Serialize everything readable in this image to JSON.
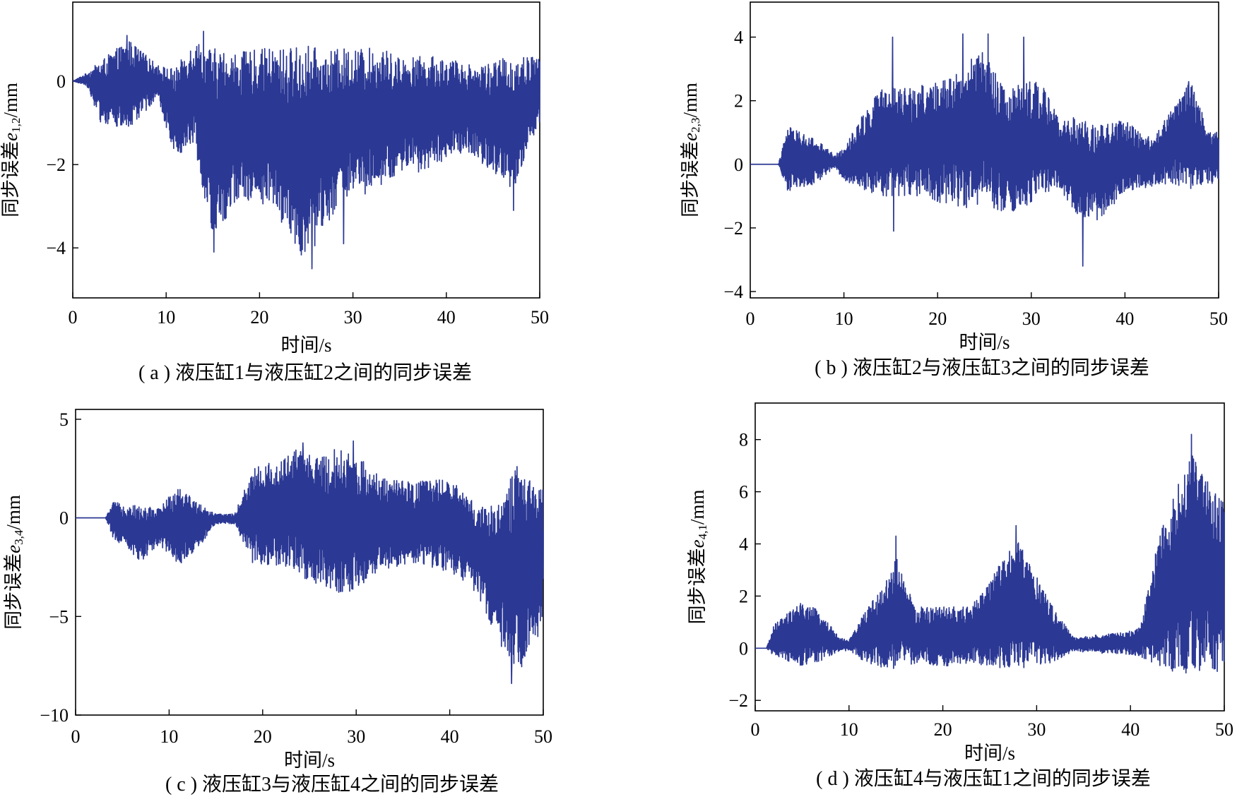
{
  "chart_data": [
    {
      "type": "line",
      "panel": "a",
      "caption": "( a ) 液压缸1与液压缸2之间的同步误差",
      "xlabel": "时间/s",
      "ylabel": {
        "prefix": "同步误差",
        "var": "e",
        "sub": "1,2",
        "unit": "/mm"
      },
      "xlim": [
        0,
        50
      ],
      "ylim": [
        -5.2,
        1.9
      ],
      "xticks": [
        0,
        10,
        20,
        30,
        40,
        50
      ],
      "yticks": [
        -4,
        -2,
        0
      ],
      "ytick_labels": [
        "−4",
        "−2",
        "0"
      ],
      "color": "#2B3894",
      "series": [
        {
          "t": [
            0,
            1.5,
            3,
            6,
            9,
            11,
            13,
            15,
            18,
            21,
            23,
            25,
            27,
            29,
            31,
            33,
            35,
            37,
            39,
            41,
            43,
            45,
            47,
            49,
            50
          ],
          "max": [
            0,
            0.2,
            0.5,
            1.0,
            0.4,
            0.3,
            1.0,
            0.8,
            0.7,
            0.8,
            0.8,
            0.9,
            0.7,
            0.8,
            0.8,
            0.8,
            0.6,
            0.6,
            0.6,
            0.5,
            0.4,
            0.5,
            0.6,
            0.6,
            0.6
          ],
          "min": [
            0,
            -0.1,
            -1.0,
            -1.2,
            -0.4,
            -1.8,
            -1.5,
            -3.8,
            -2.8,
            -3.0,
            -3.6,
            -4.4,
            -3.5,
            -2.8,
            -2.8,
            -2.6,
            -2.2,
            -2.2,
            -2.0,
            -1.7,
            -1.8,
            -2.2,
            -2.8,
            -1.5,
            -1.0
          ],
          "peaks": [
            [
              14.0,
              1.2
            ],
            [
              15.1,
              -4.1
            ],
            [
              25.6,
              -4.5
            ],
            [
              29.0,
              -3.9
            ],
            [
              47.2,
              -3.1
            ],
            [
              5.8,
              1.1
            ]
          ]
        }
      ]
    },
    {
      "type": "line",
      "panel": "b",
      "caption": "( b ) 液压缸2与液压缸3之间的同步误差",
      "xlabel": "时间/s",
      "ylabel": {
        "prefix": "同步误差",
        "var": "e",
        "sub": "2,3",
        "unit": "/mm"
      },
      "xlim": [
        0,
        50
      ],
      "ylim": [
        -4.2,
        5.1
      ],
      "xticks": [
        0,
        10,
        20,
        30,
        40,
        50
      ],
      "yticks": [
        -4,
        -2,
        0,
        2,
        4
      ],
      "ytick_labels": [
        "−4",
        "−2",
        "0",
        "2",
        "4"
      ],
      "color": "#2B3894",
      "series": [
        {
          "t": [
            0,
            3,
            4,
            7,
            9,
            10,
            12,
            14,
            17,
            20,
            23,
            25,
            27,
            29,
            31,
            33,
            35,
            37,
            40,
            43,
            45,
            47,
            49,
            50
          ],
          "max": [
            0,
            0,
            1.2,
            0.8,
            0.3,
            0.5,
            1.6,
            2.4,
            2.4,
            2.6,
            3.2,
            3.6,
            2.4,
            2.6,
            2.6,
            1.4,
            1.5,
            1.2,
            1.4,
            0.8,
            1.8,
            2.6,
            1.2,
            1.0
          ],
          "min": [
            0,
            0,
            -0.9,
            -0.6,
            -0.1,
            -0.5,
            -0.8,
            -1.0,
            -1.0,
            -1.2,
            -1.4,
            -1.2,
            -1.6,
            -1.4,
            -1.0,
            -0.8,
            -1.6,
            -1.8,
            -0.9,
            -0.7,
            -0.6,
            -0.8,
            -0.6,
            -0.6
          ],
          "peaks": [
            [
              15.2,
              4.0
            ],
            [
              15.3,
              -2.1
            ],
            [
              22.7,
              4.1
            ],
            [
              25.4,
              4.1
            ],
            [
              29.2,
              4.0
            ],
            [
              35.5,
              -3.2
            ],
            [
              46.8,
              2.6
            ]
          ]
        }
      ]
    },
    {
      "type": "line",
      "panel": "c",
      "caption": "( c ) 液压缸3与液压缸4之间的同步误差",
      "xlabel": "时间/s",
      "ylabel": {
        "prefix": "同步误差",
        "var": "e",
        "sub": "3,4",
        "unit": "/mm"
      },
      "xlim": [
        0,
        50
      ],
      "ylim": [
        -10,
        5.5
      ],
      "xticks": [
        0,
        10,
        20,
        30,
        40,
        50
      ],
      "yticks": [
        -10,
        -5,
        0,
        5
      ],
      "ytick_labels": [
        "−10",
        "−5",
        "0",
        "5"
      ],
      "color": "#2B3894",
      "series": [
        {
          "t": [
            0,
            3.2,
            4,
            7,
            9,
            11,
            13,
            15,
            17,
            19,
            22,
            24,
            26,
            28,
            30,
            33,
            36,
            39,
            41,
            43,
            45,
            47,
            49,
            50
          ],
          "max": [
            0,
            0,
            0.8,
            0.6,
            0.5,
            1.8,
            0.8,
            0.2,
            0.2,
            2.6,
            3.0,
            3.6,
            3.0,
            3.6,
            3.2,
            2.0,
            1.8,
            2.0,
            1.6,
            0.6,
            0.8,
            2.4,
            2.0,
            1.4
          ],
          "min": [
            0,
            0,
            -1.0,
            -2.2,
            -1.4,
            -2.4,
            -1.6,
            -0.3,
            -0.3,
            -2.4,
            -2.4,
            -3.0,
            -3.4,
            -4.0,
            -3.6,
            -2.6,
            -2.4,
            -2.6,
            -3.0,
            -4.0,
            -6.0,
            -8.0,
            -7.0,
            -5.0
          ],
          "peaks": [
            [
              24.3,
              3.8
            ],
            [
              29.7,
              3.9
            ],
            [
              46.6,
              -8.4
            ],
            [
              47.2,
              2.6
            ]
          ]
        }
      ]
    },
    {
      "type": "line",
      "panel": "d",
      "caption": "( d ) 液压缸4与液压缸1之间的同步误差",
      "xlabel": "时间/s",
      "ylabel": {
        "prefix": "同步误差",
        "var": "e",
        "sub": "4,1",
        "unit": "/mm"
      },
      "xlim": [
        0,
        50
      ],
      "ylim": [
        -2.4,
        9.4
      ],
      "xticks": [
        0,
        10,
        20,
        30,
        40,
        50
      ],
      "yticks": [
        -2,
        0,
        2,
        4,
        6,
        8
      ],
      "ytick_labels": [
        "−2",
        "0",
        "2",
        "4",
        "6",
        "8"
      ],
      "color": "#2B3894",
      "series": [
        {
          "t": [
            0,
            1.2,
            2,
            5,
            7,
            9,
            10,
            12,
            14,
            15,
            17,
            20,
            23,
            26,
            28,
            30,
            32,
            34,
            36,
            39,
            41,
            43,
            45,
            46.5,
            48,
            50
          ],
          "max": [
            0,
            0,
            0.9,
            1.8,
            1.4,
            0.4,
            0.3,
            1.6,
            2.6,
            3.6,
            1.6,
            1.6,
            1.6,
            3.2,
            4.2,
            2.8,
            1.4,
            0.4,
            0.5,
            0.6,
            0.8,
            4.2,
            6.4,
            7.6,
            6.6,
            5.6
          ],
          "min": [
            0,
            0,
            -0.3,
            -0.7,
            -0.5,
            -0.1,
            -0.1,
            -0.6,
            -0.8,
            -0.9,
            -0.6,
            -0.7,
            -0.6,
            -0.8,
            -0.8,
            -0.7,
            -0.5,
            -0.1,
            -0.2,
            -0.2,
            -0.3,
            -0.8,
            -1.0,
            -1.0,
            -0.9,
            -0.9
          ],
          "peaks": [
            [
              15.0,
              4.3
            ],
            [
              27.8,
              4.7
            ],
            [
              46.5,
              8.2
            ]
          ]
        }
      ]
    }
  ]
}
